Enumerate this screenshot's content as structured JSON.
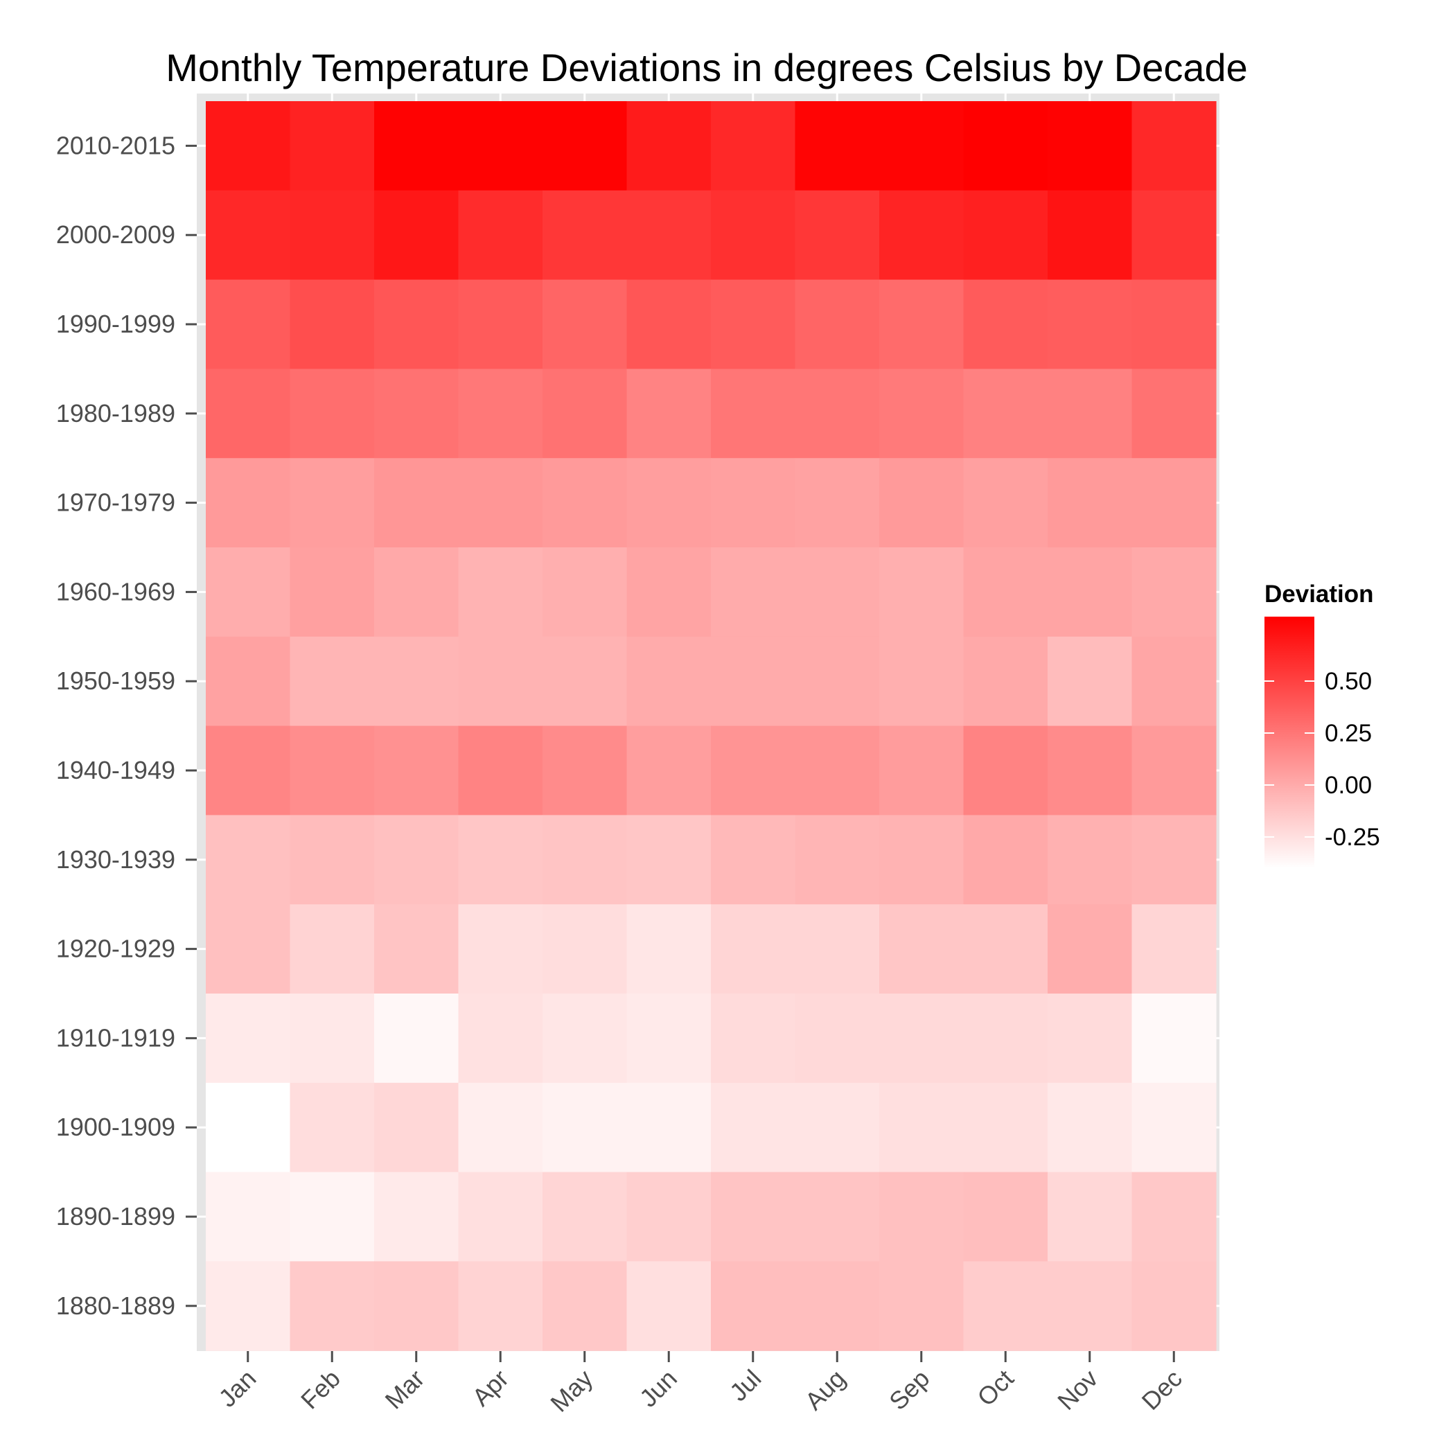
{
  "chart_data": {
    "type": "heatmap",
    "title": "Monthly Temperature Deviations in degrees Celsius by Decade",
    "xlabel": "",
    "ylabel": "",
    "x_categories": [
      "Jan",
      "Feb",
      "Mar",
      "Apr",
      "May",
      "Jun",
      "Jul",
      "Aug",
      "Sep",
      "Oct",
      "Nov",
      "Dec"
    ],
    "y_categories": [
      "2010-2015",
      "2000-2009",
      "1990-1999",
      "1980-1989",
      "1970-1979",
      "1960-1969",
      "1950-1959",
      "1940-1949",
      "1930-1939",
      "1920-1929",
      "1910-1919",
      "1900-1909",
      "1890-1899",
      "1880-1889"
    ],
    "values": [
      [
        0.7,
        0.65,
        0.8,
        0.8,
        0.8,
        0.68,
        0.62,
        0.79,
        0.79,
        0.81,
        0.8,
        0.62
      ],
      [
        0.62,
        0.63,
        0.7,
        0.6,
        0.55,
        0.55,
        0.58,
        0.55,
        0.64,
        0.66,
        0.72,
        0.56
      ],
      [
        0.38,
        0.44,
        0.4,
        0.38,
        0.33,
        0.4,
        0.38,
        0.33,
        0.3,
        0.38,
        0.37,
        0.38
      ],
      [
        0.32,
        0.29,
        0.27,
        0.24,
        0.27,
        0.19,
        0.25,
        0.25,
        0.23,
        0.2,
        0.2,
        0.27
      ],
      [
        0.08,
        0.06,
        0.1,
        0.1,
        0.08,
        0.06,
        0.05,
        0.04,
        0.08,
        0.05,
        0.08,
        0.08
      ],
      [
        -0.01,
        0.05,
        0.01,
        -0.04,
        -0.02,
        0.03,
        0.0,
        0.0,
        -0.02,
        0.03,
        0.03,
        0.01
      ],
      [
        0.04,
        -0.05,
        -0.05,
        -0.04,
        -0.04,
        0.0,
        0.0,
        0.0,
        -0.02,
        0.01,
        -0.08,
        0.02
      ],
      [
        0.18,
        0.14,
        0.12,
        0.19,
        0.15,
        0.06,
        0.11,
        0.11,
        0.07,
        0.19,
        0.15,
        0.08
      ],
      [
        -0.1,
        -0.08,
        -0.1,
        -0.13,
        -0.12,
        -0.13,
        -0.07,
        -0.05,
        -0.04,
        0.01,
        -0.03,
        -0.05
      ],
      [
        -0.1,
        -0.19,
        -0.12,
        -0.25,
        -0.24,
        -0.28,
        -0.2,
        -0.2,
        -0.13,
        -0.13,
        -0.01,
        -0.2
      ],
      [
        -0.3,
        -0.29,
        -0.36,
        -0.26,
        -0.28,
        -0.3,
        -0.23,
        -0.22,
        -0.22,
        -0.22,
        -0.23,
        -0.37
      ],
      [
        -0.4,
        -0.24,
        -0.21,
        -0.32,
        -0.34,
        -0.34,
        -0.27,
        -0.27,
        -0.25,
        -0.25,
        -0.29,
        -0.33
      ],
      [
        -0.34,
        -0.35,
        -0.3,
        -0.25,
        -0.2,
        -0.17,
        -0.12,
        -0.12,
        -0.1,
        -0.09,
        -0.21,
        -0.14
      ],
      [
        -0.3,
        -0.15,
        -0.14,
        -0.19,
        -0.14,
        -0.25,
        -0.09,
        -0.09,
        -0.1,
        -0.16,
        -0.16,
        -0.13
      ]
    ],
    "legend": {
      "title": "Deviation",
      "ticks": [
        0.5,
        0.25,
        0.0,
        -0.25
      ],
      "tick_labels": [
        "0.50",
        "0.25",
        "0.00",
        "-0.25"
      ],
      "color_low": "#ffffff",
      "color_high": "#ff0000",
      "value_range": [
        -0.4,
        0.81
      ],
      "placement": "right"
    },
    "grid": true,
    "panel_background": "#e5e5e5"
  }
}
